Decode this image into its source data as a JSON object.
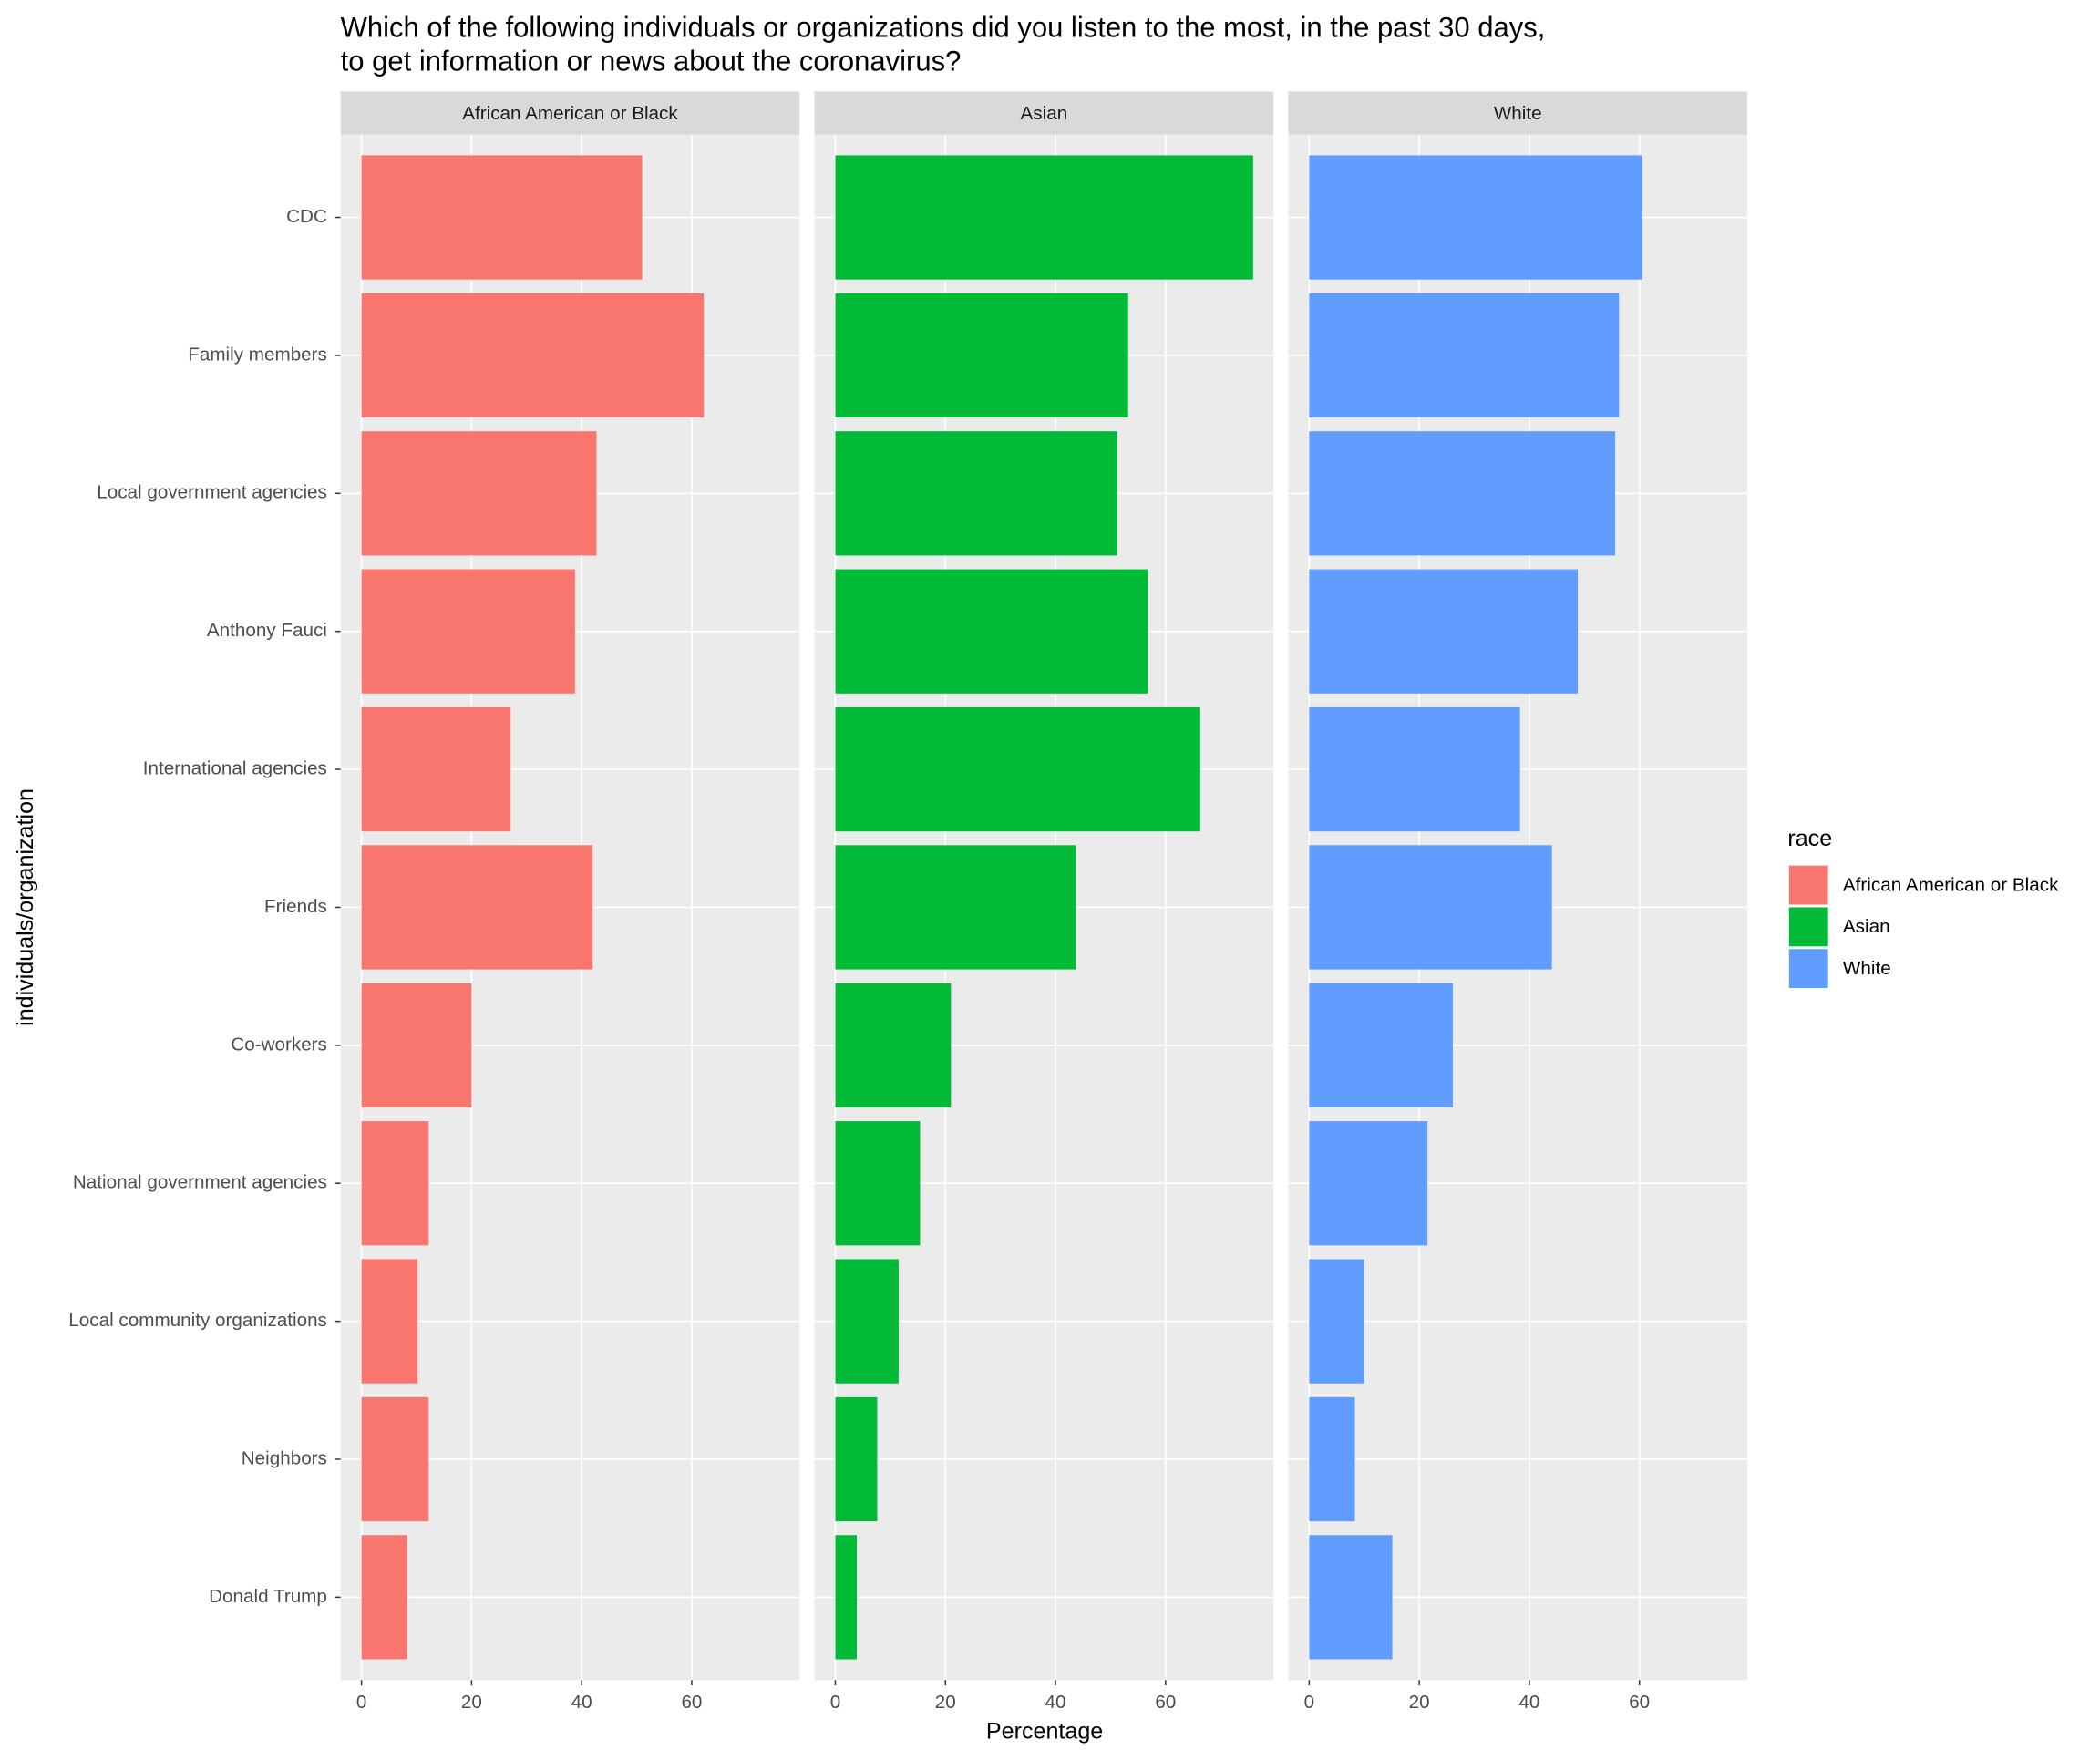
{
  "chart_data": {
    "type": "bar",
    "orientation": "horizontal",
    "title": [
      "Which of the following individuals or organizations did you listen to the most, in the past 30 days,",
      "to get information or news about the coronavirus?"
    ],
    "x_label": "Percentage",
    "y_label": "individuals/organization",
    "legend_title": "race",
    "categories": [
      "CDC",
      "Family members",
      "Local government agencies",
      "Anthony Fauci",
      "International agencies",
      "Friends",
      "Co-workers",
      "National government agencies",
      "Local community organizations",
      "Neighbors",
      "Donald Trump"
    ],
    "series": [
      {
        "name": "African American or Black",
        "color": "#f8766d",
        "values": [
          51.0,
          62.2,
          42.7,
          38.8,
          27.1,
          42.0,
          20.0,
          12.2,
          10.2,
          12.2,
          8.3
        ]
      },
      {
        "name": "Asian",
        "color": "#00ba38",
        "values": [
          75.9,
          53.2,
          51.2,
          56.8,
          66.3,
          43.7,
          21.0,
          15.4,
          11.5,
          7.6,
          3.9
        ]
      },
      {
        "name": "White",
        "color": "#619cff",
        "values": [
          60.5,
          56.3,
          55.6,
          48.8,
          38.3,
          44.1,
          26.1,
          21.5,
          10.0,
          8.3,
          15.1
        ]
      }
    ],
    "xlim": [
      -3.8,
      79.6
    ],
    "xticks": [
      0,
      20,
      40,
      60
    ],
    "grid": true,
    "legend_position": "right"
  }
}
